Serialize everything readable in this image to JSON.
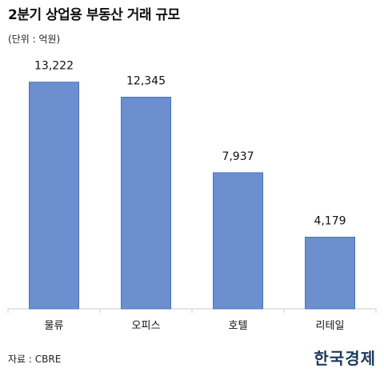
{
  "title": "2분기 상업용 부동산 거래 규모",
  "unit_label": "(단위 : 억원)",
  "source": "자료 : CBRE",
  "logo": "한국경제",
  "colors": {
    "bar": "#6b8fcf",
    "bar_stroke": "#4a72c0",
    "axis": "#cccccc"
  },
  "chart_data": {
    "type": "bar",
    "categories": [
      "물류",
      "오피스",
      "호텔",
      "리테일"
    ],
    "values": [
      13222,
      12345,
      7937,
      4179
    ],
    "value_labels": [
      "13,222",
      "12,345",
      "7,937",
      "4,179"
    ],
    "title": "2분기 상업용 부동산 거래 규모",
    "xlabel": "",
    "ylabel": "",
    "ylim": [
      0,
      14000
    ],
    "grid": false,
    "legend": "none"
  }
}
